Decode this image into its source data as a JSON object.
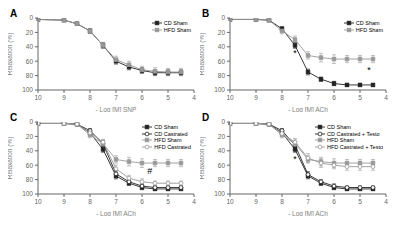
{
  "chart_data": [
    {
      "type": "line",
      "title": "A",
      "x_label": "- Log [M] SNP",
      "y_label": "Relaxation (%)",
      "xlim": [
        10,
        4
      ],
      "ylim": [
        100,
        0
      ],
      "xticks": [
        10,
        9,
        8,
        7,
        6,
        5,
        4
      ],
      "yticks": [
        0,
        20,
        40,
        60,
        80,
        100
      ],
      "grid": false,
      "legend": "upper right",
      "series": [
        {
          "name": "CD Sham",
          "color": "#222222",
          "marker": "square",
          "x": [
            10,
            9,
            8.5,
            8,
            7.5,
            7,
            6.5,
            6,
            5.5,
            5,
            4.5
          ],
          "values": [
            2,
            3,
            8,
            18,
            38,
            60,
            68,
            73,
            76,
            76,
            76
          ],
          "yerr": [
            1,
            1,
            2,
            3,
            4,
            4,
            4,
            4,
            4,
            4,
            4
          ]
        },
        {
          "name": "HFD Sham",
          "color": "#999999",
          "marker": "square",
          "x": [
            10,
            9,
            8.5,
            8,
            7.5,
            7,
            6.5,
            6,
            5.5,
            5,
            4.5
          ],
          "values": [
            2,
            3,
            8,
            18,
            38,
            58,
            65,
            72,
            74,
            75,
            75
          ],
          "yerr": [
            1,
            1,
            2,
            3,
            4,
            5,
            5,
            5,
            5,
            5,
            5
          ]
        }
      ]
    },
    {
      "type": "line",
      "title": "B",
      "x_label": "- Log [M] ACh",
      "y_label": "Relaxation (%)",
      "xlim": [
        10,
        4
      ],
      "ylim": [
        100,
        0
      ],
      "xticks": [
        10,
        9,
        8,
        7,
        6,
        5,
        4
      ],
      "yticks": [
        0,
        20,
        40,
        60,
        80,
        100
      ],
      "grid": false,
      "legend": "upper right",
      "annotations": [
        {
          "x": 7.5,
          "y": 48,
          "text": "*"
        },
        {
          "x": 4.65,
          "y": 72,
          "text": "*"
        }
      ],
      "series": [
        {
          "name": "CD Sham",
          "color": "#222222",
          "marker": "square",
          "x": [
            10,
            9,
            8.5,
            8,
            7.5,
            7,
            6.5,
            6,
            5.5,
            5,
            4.5
          ],
          "values": [
            2,
            2,
            3,
            15,
            38,
            75,
            85,
            91,
            93,
            93,
            93
          ],
          "yerr": [
            1,
            1,
            1,
            3,
            4,
            4,
            3,
            3,
            2,
            2,
            2
          ]
        },
        {
          "name": "HFD Sham",
          "color": "#999999",
          "marker": "square",
          "x": [
            10,
            9,
            8.5,
            8,
            7.5,
            7,
            6.5,
            6,
            5.5,
            5,
            4.5
          ],
          "values": [
            2,
            2,
            3,
            18,
            30,
            52,
            55,
            57,
            57,
            57,
            57
          ],
          "yerr": [
            1,
            1,
            1,
            4,
            5,
            5,
            6,
            6,
            5,
            5,
            5
          ]
        }
      ]
    },
    {
      "type": "line",
      "title": "C",
      "x_label": "- Log [M] ACh",
      "y_label": "Relaxation (%)",
      "xlim": [
        10,
        4
      ],
      "ylim": [
        100,
        0
      ],
      "xticks": [
        10,
        9,
        8,
        7,
        6,
        5,
        4
      ],
      "yticks": [
        0,
        20,
        40,
        60,
        80,
        100
      ],
      "grid": false,
      "legend": "upper right",
      "annotations": [
        {
          "x": 5.7,
          "y": 68,
          "text": "#"
        }
      ],
      "series": [
        {
          "name": "CD Sham",
          "color": "#222222",
          "marker": "square",
          "x": [
            10,
            9,
            8.5,
            8,
            7.5,
            7,
            6.5,
            6,
            5.5,
            5,
            4.5
          ],
          "values": [
            2,
            2,
            3,
            15,
            38,
            75,
            85,
            91,
            93,
            93,
            93
          ],
          "yerr": [
            1,
            1,
            1,
            3,
            4,
            4,
            3,
            3,
            2,
            2,
            2
          ]
        },
        {
          "name": "CD Castrated",
          "color": "#222222",
          "marker": "open_circle",
          "x": [
            10,
            9,
            8.5,
            8,
            7.5,
            7,
            6.5,
            6,
            5.5,
            5,
            4.5
          ],
          "values": [
            2,
            2,
            3,
            12,
            30,
            72,
            83,
            89,
            91,
            91,
            91
          ],
          "yerr": [
            1,
            1,
            1,
            3,
            4,
            4,
            3,
            3,
            2,
            2,
            2
          ]
        },
        {
          "name": "HFD Sham",
          "color": "#999999",
          "marker": "square",
          "x": [
            10,
            9,
            8.5,
            8,
            7.5,
            7,
            6.5,
            6,
            5.5,
            5,
            4.5
          ],
          "values": [
            2,
            2,
            3,
            18,
            30,
            52,
            55,
            57,
            57,
            57,
            57
          ],
          "yerr": [
            1,
            1,
            1,
            4,
            5,
            5,
            6,
            6,
            5,
            5,
            5
          ]
        },
        {
          "name": "HFD Castrated",
          "color": "#999999",
          "marker": "open_circle",
          "x": [
            10,
            9,
            8.5,
            8,
            7.5,
            7,
            6.5,
            6,
            5.5,
            5,
            4.5
          ],
          "values": [
            2,
            2,
            3,
            15,
            28,
            65,
            78,
            83,
            85,
            85,
            85
          ],
          "yerr": [
            1,
            1,
            1,
            3,
            4,
            5,
            4,
            4,
            3,
            3,
            3
          ]
        }
      ]
    },
    {
      "type": "line",
      "title": "D",
      "x_label": "- Log [M] ACh",
      "y_label": "Relaxation (%)",
      "xlim": [
        10,
        4
      ],
      "ylim": [
        100,
        0
      ],
      "xticks": [
        10,
        9,
        8,
        7,
        6,
        5,
        4
      ],
      "yticks": [
        0,
        20,
        40,
        60,
        80,
        100
      ],
      "grid": false,
      "legend": "upper right",
      "annotations": [
        {
          "x": 7.5,
          "y": 51,
          "text": "*"
        }
      ],
      "series": [
        {
          "name": "CD Sham",
          "color": "#222222",
          "marker": "square",
          "x": [
            10,
            9,
            8.5,
            8,
            7.5,
            7,
            6.5,
            6,
            5.5,
            5,
            4.5
          ],
          "values": [
            2,
            2,
            3,
            15,
            38,
            75,
            85,
            91,
            93,
            93,
            93
          ],
          "yerr": [
            1,
            1,
            1,
            3,
            4,
            4,
            3,
            3,
            2,
            2,
            2
          ]
        },
        {
          "name": "CD Castrated + Testo",
          "color": "#222222",
          "marker": "open_circle",
          "x": [
            10,
            9,
            8.5,
            8,
            7.5,
            7,
            6.5,
            6,
            5.5,
            5,
            4.5
          ],
          "values": [
            2,
            2,
            3,
            12,
            32,
            73,
            83,
            89,
            91,
            91,
            91
          ],
          "yerr": [
            1,
            1,
            1,
            3,
            4,
            4,
            3,
            3,
            2,
            2,
            2
          ]
        },
        {
          "name": "HFD Sham",
          "color": "#999999",
          "marker": "square",
          "x": [
            10,
            9,
            8.5,
            8,
            7.5,
            7,
            6.5,
            6,
            5.5,
            5,
            4.5
          ],
          "values": [
            2,
            2,
            3,
            18,
            30,
            52,
            55,
            57,
            57,
            57,
            57
          ],
          "yerr": [
            1,
            1,
            1,
            4,
            5,
            5,
            6,
            6,
            5,
            5,
            5
          ]
        },
        {
          "name": "HFD Castrated + Testo",
          "color": "#999999",
          "marker": "open_circle",
          "x": [
            10,
            9,
            8.5,
            8,
            7.5,
            7,
            6.5,
            6,
            5.5,
            5,
            4.5
          ],
          "values": [
            2,
            2,
            3,
            16,
            28,
            50,
            57,
            60,
            62,
            62,
            62
          ],
          "yerr": [
            1,
            1,
            1,
            4,
            5,
            6,
            6,
            5,
            5,
            5,
            5
          ]
        }
      ]
    }
  ]
}
